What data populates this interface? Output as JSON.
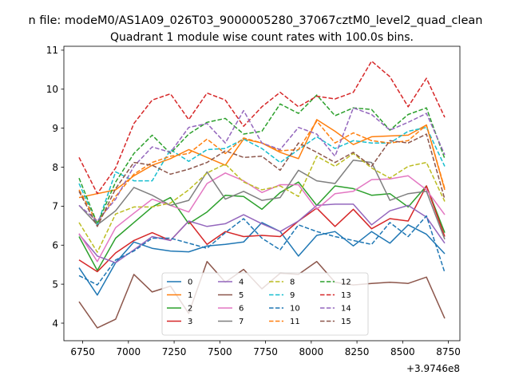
{
  "figure": {
    "suptitle": "n file: modeM0/AS1A09_026T03_9000005280_37067cztM0_level2_quad_clean",
    "title": "Quadrant 1 module wise count rates with 100.0s bins.",
    "offset_text": "+3.9746e8"
  },
  "chart_data": {
    "type": "line",
    "title": "Quadrant 1 module wise count rates with 100.0s bins.",
    "xlabel": "",
    "ylabel": "",
    "x_offset": 397460000,
    "x": [
      6730,
      6830,
      6930,
      7030,
      7130,
      7230,
      7330,
      7430,
      7530,
      7630,
      7730,
      7830,
      7930,
      8030,
      8130,
      8230,
      8330,
      8430,
      8530,
      8630,
      8730
    ],
    "xlim": [
      6647,
      8813
    ],
    "ylim": [
      3.55,
      11.1
    ],
    "xticks": [
      6750,
      7000,
      7250,
      7500,
      7750,
      8000,
      8250,
      8500,
      8750
    ],
    "yticks": [
      4,
      5,
      6,
      7,
      8,
      9,
      10,
      11
    ],
    "grid": false,
    "legend": {
      "position": "lower-center",
      "ncol": 4
    },
    "series": [
      {
        "name": "0",
        "color": "#1f77b4",
        "style": "solid",
        "values": [
          5.42,
          4.72,
          5.55,
          6.08,
          5.92,
          5.85,
          5.83,
          5.98,
          6.02,
          6.08,
          6.58,
          6.35,
          5.72,
          6.25,
          6.35,
          5.98,
          6.35,
          6.05,
          6.52,
          6.28,
          5.78
        ]
      },
      {
        "name": "1",
        "color": "#ff7f0e",
        "style": "solid",
        "values": [
          7.22,
          7.32,
          7.42,
          7.78,
          8.05,
          8.22,
          8.45,
          8.25,
          8.05,
          8.72,
          8.62,
          8.38,
          8.22,
          9.22,
          8.92,
          8.58,
          8.78,
          8.8,
          8.82,
          9.08,
          7.42
        ]
      },
      {
        "name": "2",
        "color": "#2ca02c",
        "style": "solid",
        "values": [
          6.22,
          5.35,
          6.18,
          6.58,
          6.98,
          7.22,
          6.55,
          6.85,
          7.28,
          7.25,
          6.92,
          7.35,
          7.62,
          7.02,
          7.52,
          7.45,
          7.28,
          7.32,
          6.98,
          7.52,
          6.32
        ]
      },
      {
        "name": "3",
        "color": "#d62728",
        "style": "solid",
        "values": [
          5.62,
          5.32,
          5.8,
          6.12,
          6.32,
          6.12,
          6.62,
          6.02,
          6.35,
          6.22,
          6.25,
          6.22,
          6.62,
          6.95,
          6.48,
          6.92,
          6.42,
          6.68,
          6.62,
          7.52,
          6.22
        ]
      },
      {
        "name": "4",
        "color": "#9467bd",
        "style": "solid",
        "values": [
          6.28,
          5.72,
          5.55,
          5.88,
          6.22,
          6.12,
          6.62,
          6.48,
          6.55,
          6.78,
          6.55,
          6.35,
          6.62,
          7.02,
          7.05,
          7.05,
          6.52,
          6.88,
          7.02,
          6.72,
          6.05
        ]
      },
      {
        "name": "5",
        "color": "#8c564b",
        "style": "solid",
        "values": [
          4.55,
          3.88,
          4.1,
          5.25,
          4.8,
          4.95,
          4.25,
          5.58,
          5.05,
          5.38,
          4.88,
          5.28,
          5.25,
          5.58,
          5.05,
          4.98,
          5.02,
          5.05,
          5.02,
          5.18,
          4.12
        ]
      },
      {
        "name": "6",
        "color": "#e377c2",
        "style": "solid",
        "values": [
          6.3,
          5.58,
          6.45,
          6.82,
          7.18,
          7.02,
          6.85,
          7.58,
          7.85,
          7.65,
          7.35,
          7.55,
          7.55,
          6.92,
          7.32,
          7.38,
          7.68,
          7.7,
          7.78,
          7.42,
          6.78
        ]
      },
      {
        "name": "7",
        "color": "#7f7f7f",
        "style": "solid",
        "values": [
          7.02,
          6.52,
          6.88,
          7.48,
          7.28,
          7.02,
          7.15,
          7.88,
          7.18,
          7.38,
          7.15,
          7.22,
          7.92,
          7.65,
          7.58,
          8.18,
          8.12,
          7.15,
          7.32,
          7.38,
          6.15
        ]
      },
      {
        "name": "8",
        "color": "#bcbd22",
        "style": "dashed",
        "values": [
          6.58,
          5.82,
          6.8,
          6.98,
          6.98,
          7.08,
          7.42,
          7.85,
          8.08,
          7.62,
          7.42,
          7.52,
          7.25,
          8.28,
          8.02,
          8.35,
          7.98,
          7.72,
          8.02,
          8.12,
          7.12
        ]
      },
      {
        "name": "9",
        "color": "#17becf",
        "style": "dashed",
        "values": [
          7.58,
          6.52,
          7.88,
          7.65,
          7.65,
          8.45,
          8.15,
          8.45,
          8.48,
          8.72,
          8.48,
          8.12,
          8.45,
          8.78,
          8.48,
          8.68,
          8.62,
          8.62,
          8.92,
          9.02,
          8.02
        ]
      },
      {
        "name": "10",
        "color": "#1f77b4",
        "style": "dashed",
        "values": [
          5.22,
          4.98,
          5.62,
          5.85,
          6.18,
          6.18,
          6.05,
          5.92,
          6.32,
          6.68,
          6.18,
          5.88,
          6.52,
          6.35,
          6.22,
          6.12,
          6.02,
          6.58,
          6.22,
          6.75,
          5.3
        ]
      },
      {
        "name": "11",
        "color": "#ff7f0e",
        "style": "dashed",
        "values": [
          7.42,
          6.58,
          7.25,
          7.82,
          8.12,
          8.28,
          8.35,
          8.72,
          8.35,
          8.75,
          8.62,
          8.42,
          8.45,
          9.18,
          8.62,
          8.88,
          8.68,
          8.62,
          8.68,
          9.08,
          7.45
        ]
      },
      {
        "name": "12",
        "color": "#2ca02c",
        "style": "dashed",
        "values": [
          7.72,
          6.55,
          7.62,
          8.35,
          8.82,
          8.35,
          8.85,
          9.15,
          9.25,
          8.85,
          8.92,
          9.62,
          9.38,
          9.85,
          9.32,
          9.52,
          9.48,
          8.95,
          9.35,
          9.52,
          8.22
        ]
      },
      {
        "name": "13",
        "color": "#d62728",
        "style": "dashed",
        "values": [
          8.25,
          7.32,
          7.98,
          9.12,
          9.72,
          9.88,
          9.22,
          9.9,
          9.72,
          9.05,
          9.55,
          9.92,
          9.55,
          9.82,
          9.75,
          9.92,
          10.72,
          10.32,
          9.55,
          10.28,
          9.28
        ]
      },
      {
        "name": "14",
        "color": "#9467bd",
        "style": "dashed",
        "values": [
          7.02,
          6.62,
          7.18,
          8.02,
          8.52,
          8.38,
          9.02,
          9.12,
          8.62,
          9.45,
          8.62,
          8.45,
          9.02,
          8.85,
          8.28,
          9.52,
          9.35,
          8.95,
          9.15,
          9.38,
          8.32
        ]
      },
      {
        "name": "15",
        "color": "#8c564b",
        "style": "dashed",
        "values": [
          7.38,
          6.48,
          7.45,
          8.12,
          8.05,
          7.82,
          7.95,
          8.12,
          8.42,
          8.25,
          8.28,
          7.92,
          8.62,
          8.38,
          8.12,
          8.38,
          8.02,
          8.68,
          8.62,
          8.85,
          7.18
        ]
      }
    ]
  }
}
